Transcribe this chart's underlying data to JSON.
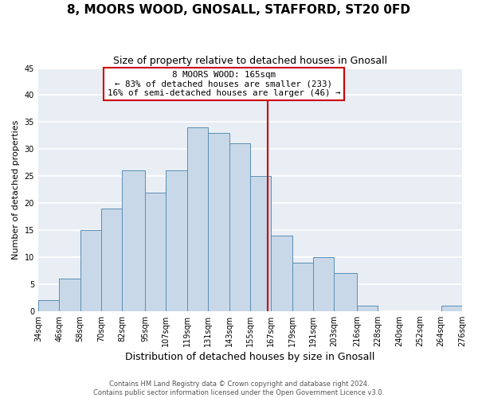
{
  "title": "8, MOORS WOOD, GNOSALL, STAFFORD, ST20 0FD",
  "subtitle": "Size of property relative to detached houses in Gnosall",
  "xlabel": "Distribution of detached houses by size in Gnosall",
  "ylabel": "Number of detached properties",
  "footer_lines": [
    "Contains HM Land Registry data © Crown copyright and database right 2024.",
    "Contains public sector information licensed under the Open Government Licence v3.0."
  ],
  "bin_labels": [
    "34sqm",
    "46sqm",
    "58sqm",
    "70sqm",
    "82sqm",
    "95sqm",
    "107sqm",
    "119sqm",
    "131sqm",
    "143sqm",
    "155sqm",
    "167sqm",
    "179sqm",
    "191sqm",
    "203sqm",
    "216sqm",
    "228sqm",
    "240sqm",
    "252sqm",
    "264sqm",
    "276sqm"
  ],
  "bin_edges": [
    34,
    46,
    58,
    70,
    82,
    95,
    107,
    119,
    131,
    143,
    155,
    167,
    179,
    191,
    203,
    216,
    228,
    240,
    252,
    264,
    276
  ],
  "counts": [
    2,
    6,
    15,
    19,
    26,
    22,
    26,
    34,
    33,
    31,
    25,
    14,
    9,
    10,
    7,
    1,
    0,
    0,
    0,
    1
  ],
  "bar_color": "#c8d8e8",
  "bar_edge_color": "#5a8fb5",
  "property_size": 165,
  "property_line_color": "#cc0000",
  "annotation_title": "8 MOORS WOOD: 165sqm",
  "annotation_line1": "← 83% of detached houses are smaller (233)",
  "annotation_line2": "16% of semi-detached houses are larger (46) →",
  "annotation_box_facecolor": "#ffffff",
  "annotation_box_edgecolor": "#cc0000",
  "ylim": [
    0,
    45
  ],
  "yticks": [
    0,
    5,
    10,
    15,
    20,
    25,
    30,
    35,
    40,
    45
  ],
  "plot_bg_color": "#e8eef4",
  "fig_bg_color": "#ffffff",
  "grid_color": "#ffffff",
  "title_fontsize": 11,
  "subtitle_fontsize": 9,
  "xlabel_fontsize": 9,
  "ylabel_fontsize": 8,
  "tick_fontsize": 7,
  "footer_fontsize": 6
}
